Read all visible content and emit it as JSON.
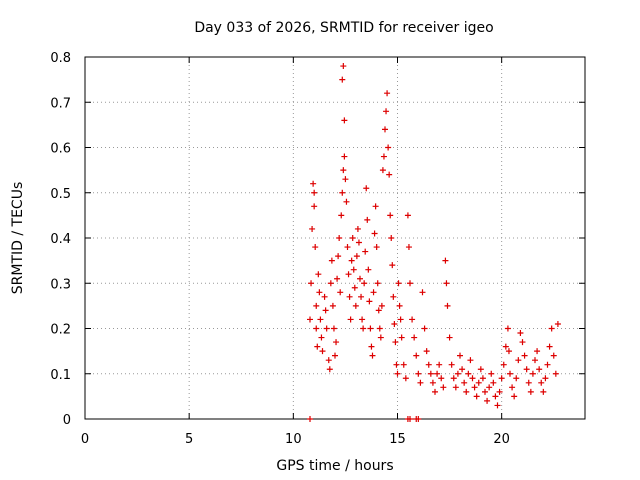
{
  "chart_data": {
    "type": "scatter",
    "title": "Day 033 of 2026, SRMTID for receiver igeo",
    "xlabel": "GPS time / hours",
    "ylabel": "SRMTID / TECUs",
    "xlim": [
      0,
      24
    ],
    "ylim": [
      0,
      0.8
    ],
    "xticks": [
      0,
      5,
      10,
      15,
      20
    ],
    "yticks": [
      0,
      0.1,
      0.2,
      0.3,
      0.4,
      0.5,
      0.6,
      0.7,
      0.8
    ],
    "xtick_labels": [
      "0",
      "5",
      "10",
      "15",
      "20"
    ],
    "ytick_labels": [
      "0",
      "0.1",
      "0.2",
      "0.3",
      "0.4",
      "0.5",
      "0.6",
      "0.7",
      "0.8"
    ],
    "grid": true,
    "marker": "+",
    "color": "#dd0000",
    "series": [
      {
        "name": "SRMTID",
        "points": [
          [
            10.8,
            0.0
          ],
          [
            15.5,
            0.0
          ],
          [
            15.6,
            0.0
          ],
          [
            15.9,
            0.0
          ],
          [
            16.0,
            0.0
          ],
          [
            10.8,
            0.22
          ],
          [
            10.85,
            0.3
          ],
          [
            10.9,
            0.42
          ],
          [
            10.95,
            0.52
          ],
          [
            11.0,
            0.5
          ],
          [
            11.0,
            0.47
          ],
          [
            11.05,
            0.38
          ],
          [
            11.1,
            0.25
          ],
          [
            11.1,
            0.2
          ],
          [
            11.15,
            0.16
          ],
          [
            11.2,
            0.32
          ],
          [
            11.25,
            0.28
          ],
          [
            11.3,
            0.22
          ],
          [
            11.35,
            0.18
          ],
          [
            11.4,
            0.15
          ],
          [
            11.5,
            0.27
          ],
          [
            11.55,
            0.24
          ],
          [
            11.6,
            0.2
          ],
          [
            11.7,
            0.13
          ],
          [
            11.75,
            0.11
          ],
          [
            11.8,
            0.3
          ],
          [
            11.85,
            0.35
          ],
          [
            11.9,
            0.25
          ],
          [
            11.95,
            0.2
          ],
          [
            12.0,
            0.14
          ],
          [
            12.05,
            0.17
          ],
          [
            12.1,
            0.31
          ],
          [
            12.15,
            0.36
          ],
          [
            12.2,
            0.4
          ],
          [
            12.25,
            0.28
          ],
          [
            12.3,
            0.45
          ],
          [
            12.35,
            0.5
          ],
          [
            12.4,
            0.55
          ],
          [
            12.45,
            0.58
          ],
          [
            12.5,
            0.53
          ],
          [
            12.55,
            0.48
          ],
          [
            12.6,
            0.38
          ],
          [
            12.65,
            0.32
          ],
          [
            12.7,
            0.27
          ],
          [
            12.75,
            0.22
          ],
          [
            12.35,
            0.75
          ],
          [
            12.4,
            0.78
          ],
          [
            12.45,
            0.66
          ],
          [
            12.8,
            0.35
          ],
          [
            12.85,
            0.4
          ],
          [
            12.9,
            0.33
          ],
          [
            12.95,
            0.29
          ],
          [
            13.0,
            0.25
          ],
          [
            13.05,
            0.36
          ],
          [
            13.1,
            0.42
          ],
          [
            13.15,
            0.39
          ],
          [
            13.2,
            0.31
          ],
          [
            13.25,
            0.27
          ],
          [
            13.3,
            0.22
          ],
          [
            13.35,
            0.2
          ],
          [
            13.4,
            0.3
          ],
          [
            13.45,
            0.37
          ],
          [
            13.5,
            0.51
          ],
          [
            13.55,
            0.44
          ],
          [
            13.6,
            0.33
          ],
          [
            13.65,
            0.26
          ],
          [
            13.7,
            0.2
          ],
          [
            13.75,
            0.16
          ],
          [
            13.8,
            0.14
          ],
          [
            13.85,
            0.28
          ],
          [
            13.9,
            0.41
          ],
          [
            13.95,
            0.47
          ],
          [
            14.0,
            0.38
          ],
          [
            14.05,
            0.3
          ],
          [
            14.1,
            0.24
          ],
          [
            14.15,
            0.2
          ],
          [
            14.2,
            0.18
          ],
          [
            14.25,
            0.25
          ],
          [
            14.3,
            0.55
          ],
          [
            14.35,
            0.58
          ],
          [
            14.4,
            0.64
          ],
          [
            14.45,
            0.68
          ],
          [
            14.5,
            0.72
          ],
          [
            14.55,
            0.6
          ],
          [
            14.6,
            0.54
          ],
          [
            14.65,
            0.45
          ],
          [
            14.7,
            0.4
          ],
          [
            14.75,
            0.34
          ],
          [
            14.8,
            0.27
          ],
          [
            14.85,
            0.21
          ],
          [
            14.9,
            0.17
          ],
          [
            14.95,
            0.12
          ],
          [
            15.0,
            0.1
          ],
          [
            15.05,
            0.3
          ],
          [
            15.1,
            0.25
          ],
          [
            15.15,
            0.22
          ],
          [
            15.2,
            0.18
          ],
          [
            15.3,
            0.12
          ],
          [
            15.4,
            0.09
          ],
          [
            15.5,
            0.45
          ],
          [
            15.55,
            0.38
          ],
          [
            15.6,
            0.3
          ],
          [
            15.7,
            0.22
          ],
          [
            15.8,
            0.18
          ],
          [
            15.9,
            0.14
          ],
          [
            16.0,
            0.1
          ],
          [
            16.1,
            0.08
          ],
          [
            16.2,
            0.28
          ],
          [
            16.3,
            0.2
          ],
          [
            16.4,
            0.15
          ],
          [
            16.5,
            0.12
          ],
          [
            16.6,
            0.1
          ],
          [
            16.7,
            0.08
          ],
          [
            16.8,
            0.06
          ],
          [
            16.9,
            0.1
          ],
          [
            17.0,
            0.12
          ],
          [
            17.1,
            0.09
          ],
          [
            17.2,
            0.07
          ],
          [
            17.3,
            0.35
          ],
          [
            17.35,
            0.3
          ],
          [
            17.4,
            0.25
          ],
          [
            17.5,
            0.18
          ],
          [
            17.6,
            0.12
          ],
          [
            17.7,
            0.09
          ],
          [
            17.8,
            0.07
          ],
          [
            17.9,
            0.1
          ],
          [
            18.0,
            0.14
          ],
          [
            18.1,
            0.11
          ],
          [
            18.2,
            0.08
          ],
          [
            18.3,
            0.06
          ],
          [
            18.4,
            0.1
          ],
          [
            18.5,
            0.13
          ],
          [
            18.6,
            0.09
          ],
          [
            18.7,
            0.07
          ],
          [
            18.8,
            0.05
          ],
          [
            18.9,
            0.08
          ],
          [
            19.0,
            0.11
          ],
          [
            19.1,
            0.09
          ],
          [
            19.2,
            0.06
          ],
          [
            19.3,
            0.04
          ],
          [
            19.4,
            0.07
          ],
          [
            19.5,
            0.1
          ],
          [
            19.6,
            0.08
          ],
          [
            19.7,
            0.05
          ],
          [
            19.8,
            0.03
          ],
          [
            19.9,
            0.06
          ],
          [
            20.0,
            0.09
          ],
          [
            20.1,
            0.12
          ],
          [
            20.2,
            0.16
          ],
          [
            20.3,
            0.2
          ],
          [
            20.35,
            0.15
          ],
          [
            20.4,
            0.1
          ],
          [
            20.5,
            0.07
          ],
          [
            20.6,
            0.05
          ],
          [
            20.7,
            0.09
          ],
          [
            20.8,
            0.13
          ],
          [
            20.9,
            0.19
          ],
          [
            21.0,
            0.17
          ],
          [
            21.1,
            0.14
          ],
          [
            21.2,
            0.11
          ],
          [
            21.3,
            0.08
          ],
          [
            21.4,
            0.06
          ],
          [
            21.5,
            0.1
          ],
          [
            21.6,
            0.13
          ],
          [
            21.7,
            0.15
          ],
          [
            21.8,
            0.11
          ],
          [
            21.9,
            0.08
          ],
          [
            22.0,
            0.06
          ],
          [
            22.1,
            0.09
          ],
          [
            22.2,
            0.12
          ],
          [
            22.3,
            0.16
          ],
          [
            22.4,
            0.2
          ],
          [
            22.5,
            0.14
          ],
          [
            22.6,
            0.1
          ],
          [
            22.7,
            0.21
          ]
        ]
      }
    ]
  }
}
